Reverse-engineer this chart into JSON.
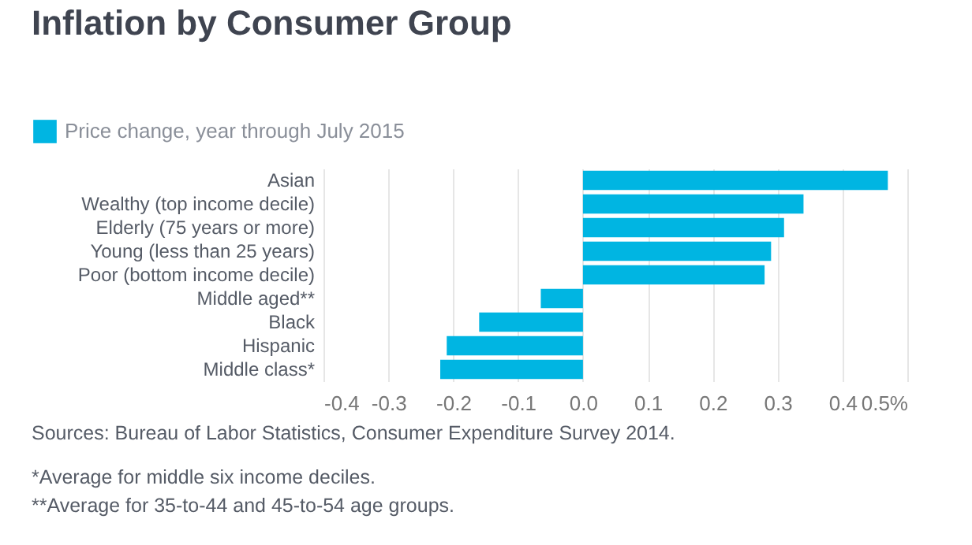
{
  "chart_data": {
    "type": "bar",
    "orientation": "horizontal",
    "title": "Inflation by Consumer Group",
    "categories": [
      "Asian",
      "Wealthy (top income decile)",
      "Elderly (75 years or more)",
      "Young (less than 25 years)",
      "Poor (bottom income decile)",
      "Middle aged**",
      "Black",
      "Hispanic",
      "Middle class*"
    ],
    "series": [
      {
        "name": "Price change, year through July 2015",
        "color": "#00b5e2",
        "values": [
          0.47,
          0.34,
          0.31,
          0.29,
          0.28,
          -0.065,
          -0.16,
          -0.21,
          -0.22
        ]
      }
    ],
    "xlim": [
      -0.4,
      0.5
    ],
    "xticks": [
      -0.4,
      -0.3,
      -0.2,
      -0.1,
      {
        "value": 0,
        "label": "0.0"
      },
      0.1,
      0.2,
      0.3,
      0.4,
      {
        "value": 0.5,
        "label": "0.5%"
      }
    ],
    "grid": "x",
    "legend": "top left",
    "annotations": [
      "Sources: Bureau of Labor Statistics, Consumer Expenditure Survey 2014.",
      "*Average for middle six income deciles.",
      "**Average for 35-to-44 and 45-to-54 age groups."
    ]
  }
}
